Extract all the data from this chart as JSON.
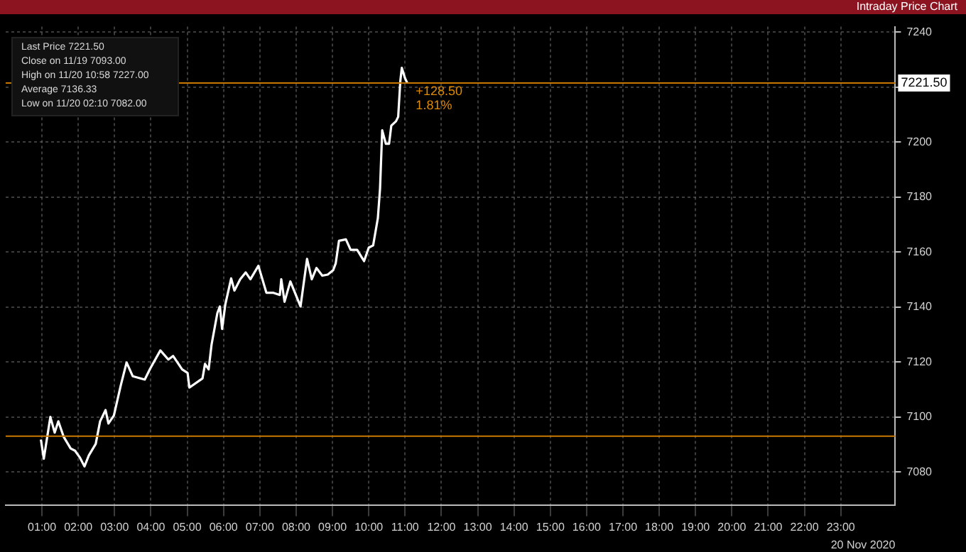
{
  "chart_data": {
    "type": "line",
    "title": "Intraday Price Chart",
    "xlabel": "20 Nov 2020",
    "x": [
      0.97,
      1.05,
      1.23,
      1.35,
      1.45,
      1.6,
      1.79,
      1.91,
      2.04,
      2.17,
      2.29,
      2.48,
      2.6,
      2.75,
      2.83,
      2.98,
      3.17,
      3.33,
      3.5,
      3.83,
      3.98,
      4.26,
      4.48,
      4.61,
      4.86,
      5.01,
      5.06,
      5.42,
      5.49,
      5.59,
      5.67,
      5.83,
      5.9,
      5.96,
      6.05,
      6.21,
      6.3,
      6.46,
      6.61,
      6.74,
      6.96,
      7.18,
      7.36,
      7.55,
      7.59,
      7.68,
      7.84,
      8.12,
      8.3,
      8.43,
      8.56,
      8.72,
      8.87,
      9.02,
      9.09,
      9.18,
      9.37,
      9.5,
      9.68,
      9.87,
      10,
      10.12,
      10.25,
      10.31,
      10.37,
      10.47,
      10.56,
      10.62,
      10.75,
      10.81,
      10.87,
      10.91,
      11,
      11.06
    ],
    "series": [
      {
        "color": "#ffffff",
        "values": [
          7091.8,
          7084.8,
          7100,
          7094.3,
          7098.4,
          7092.7,
          7088.5,
          7087.7,
          7085.3,
          7082,
          7086,
          7090.2,
          7098.4,
          7102.5,
          7097.6,
          7100.5,
          7111.5,
          7119.8,
          7114.8,
          7113.6,
          7117.6,
          7124.2,
          7120.9,
          7122.2,
          7117.3,
          7116,
          7110.7,
          7114,
          7119.3,
          7117.3,
          7126.3,
          7137.8,
          7140.2,
          7132,
          7141,
          7150.4,
          7146,
          7150.1,
          7152.6,
          7150.1,
          7155,
          7145.2,
          7145.2,
          7144.4,
          7150.1,
          7141.9,
          7149.3,
          7140.2,
          7157.5,
          7150.1,
          7154.2,
          7151.4,
          7151.8,
          7153.4,
          7155.9,
          7164.1,
          7164.6,
          7160.8,
          7160.8,
          7156.7,
          7161.6,
          7162.4,
          7172.3,
          7183,
          7204.3,
          7199.4,
          7199.4,
          7206,
          7207.6,
          7209.2,
          7222.4,
          7227,
          7223.2,
          7221.5
        ]
      }
    ],
    "xlim": [
      0,
      24.5
    ],
    "ylim": [
      7068,
      7242
    ],
    "xticks": [
      {
        "value": 1,
        "label": "01:00"
      },
      {
        "value": 2,
        "label": "02:00"
      },
      {
        "value": 3,
        "label": "03:00"
      },
      {
        "value": 4,
        "label": "04:00"
      },
      {
        "value": 5,
        "label": "05:00"
      },
      {
        "value": 6,
        "label": "06:00"
      },
      {
        "value": 7,
        "label": "07:00"
      },
      {
        "value": 8,
        "label": "08:00"
      },
      {
        "value": 9,
        "label": "09:00"
      },
      {
        "value": 10,
        "label": "10:00"
      },
      {
        "value": 11,
        "label": "11:00"
      },
      {
        "value": 12,
        "label": "12:00"
      },
      {
        "value": 13,
        "label": "13:00"
      },
      {
        "value": 14,
        "label": "14:00"
      },
      {
        "value": 15,
        "label": "15:00"
      },
      {
        "value": 16,
        "label": "16:00"
      },
      {
        "value": 17,
        "label": "17:00"
      },
      {
        "value": 18,
        "label": "18:00"
      },
      {
        "value": 19,
        "label": "19:00"
      },
      {
        "value": 20,
        "label": "20:00"
      },
      {
        "value": 21,
        "label": "21:00"
      },
      {
        "value": 22,
        "label": "22:00"
      },
      {
        "value": 23,
        "label": "23:00"
      }
    ],
    "yticks": [
      7080,
      7100,
      7120,
      7140,
      7160,
      7180,
      7200,
      {
        "value": 7220,
        "label": null
      },
      7240
    ],
    "ref_lines": [
      {
        "axis": "y",
        "value": 7093,
        "color": "#c87800",
        "line_style": "solid"
      },
      {
        "axis": "y",
        "value": 7221.5,
        "label": "7221.50",
        "color": "#c87800",
        "line_style": "solid"
      }
    ],
    "annotations": [
      "Last Price 7221.50",
      "Close on 11/19 7093.00",
      "High on 11/20 10:58 7227.00",
      "Average 7136.33",
      "Low on 11/20 02:10 7082.00",
      {
        "text": "+128.50",
        "x": 11.06,
        "y": 7221.5
      },
      {
        "text": "1.81%",
        "x": 11.06,
        "y": 7221.5
      }
    ],
    "grid": true,
    "legend": false,
    "marker": "none",
    "line_style": "solid"
  }
}
